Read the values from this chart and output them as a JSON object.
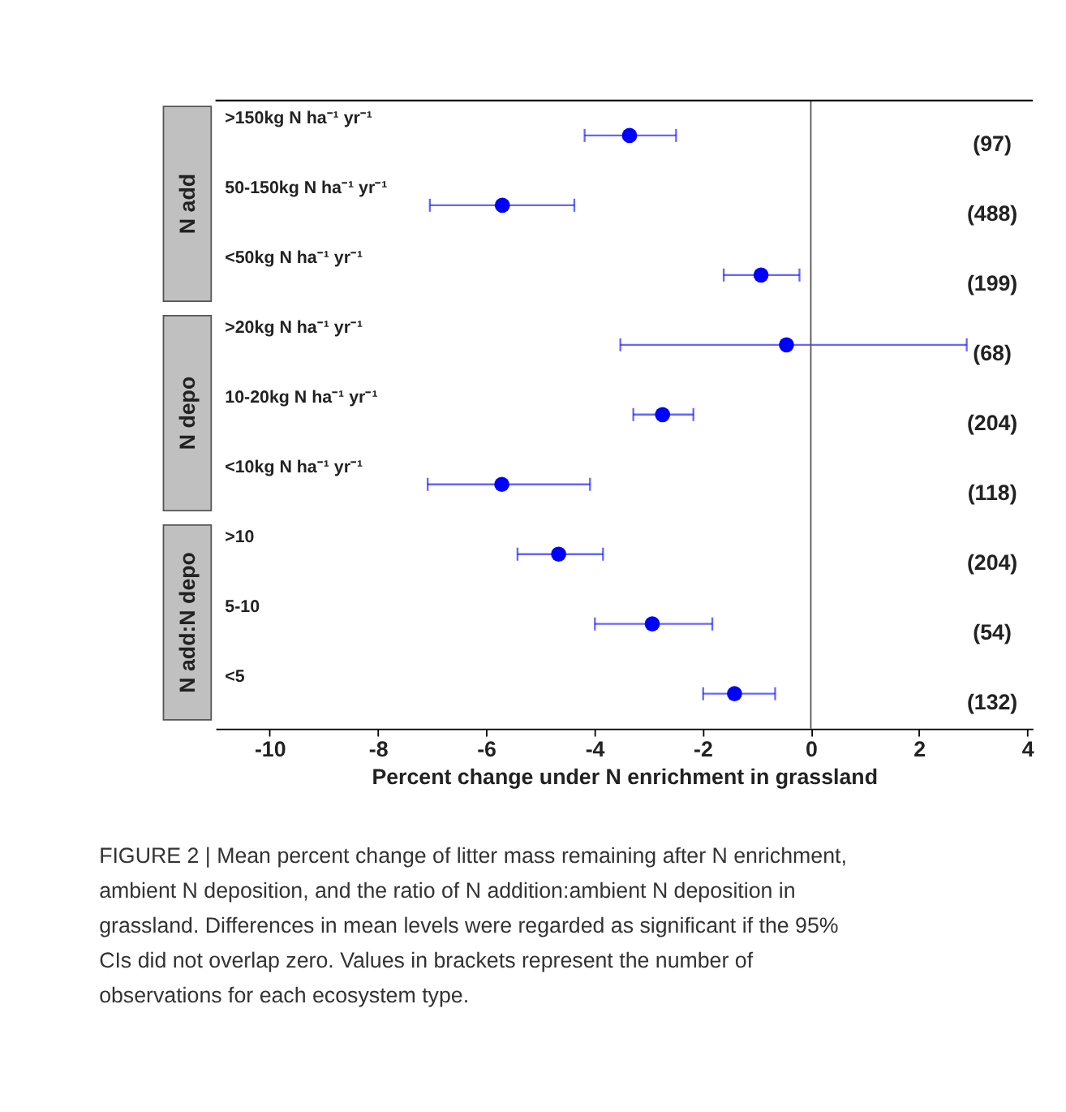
{
  "chart_data": {
    "type": "scatter",
    "orientation": "horizontal",
    "xlabel": "Percent change under N enrichment in grassland",
    "categories": [
      ">150kg N ha⁻¹ yr⁻¹",
      "50-150kg N ha⁻¹ yr⁻¹",
      "<50kg N ha⁻¹ yr⁻¹",
      ">20kg N ha⁻¹ yr⁻¹",
      "10-20kg N ha⁻¹ yr⁻¹",
      "<10kg N ha⁻¹ yr⁻¹",
      ">10",
      "5-10",
      "<5"
    ],
    "series": [
      {
        "color": "#0000ff",
        "values": [
          -3.35,
          -5.7,
          -0.92,
          -0.45,
          -2.74,
          -5.71,
          -4.66,
          -2.93,
          -1.41
        ],
        "errors": [
          [
            -4.18,
            -2.49
          ],
          [
            -7.04,
            -4.37
          ],
          [
            -1.61,
            -0.21
          ],
          [
            -3.52,
            2.88
          ],
          [
            -3.28,
            -2.17
          ],
          [
            -7.08,
            -4.08
          ],
          [
            -5.42,
            -3.84
          ],
          [
            -3.99,
            -1.82
          ],
          [
            -1.99,
            -0.66
          ]
        ]
      }
    ],
    "xlim": [
      -11,
      4.1
    ],
    "xticks": [
      -10,
      -8,
      -6,
      -4,
      -2,
      0,
      2,
      4
    ],
    "marker": "circle",
    "grid": false,
    "legend": false,
    "ref_lines": [
      {
        "axis": "x",
        "value": 0,
        "color": "#555555"
      }
    ],
    "annotations": [
      "N add",
      "N depo",
      "N add:N depo",
      "(97)",
      "(488)",
      "(199)",
      "(68)",
      "(204)",
      "(118)",
      "(204)",
      "(54)",
      "(132)",
      "FIGURE 2 | Mean percent change of litter mass remaining after N enrichment, ambient N deposition, and the ratio of N addition:ambient N deposition in grassland. Differences in mean levels were regarded as significant if the 95% CIs did not overlap zero. Values in brackets represent the number of observations for each ecosystem type."
    ]
  }
}
